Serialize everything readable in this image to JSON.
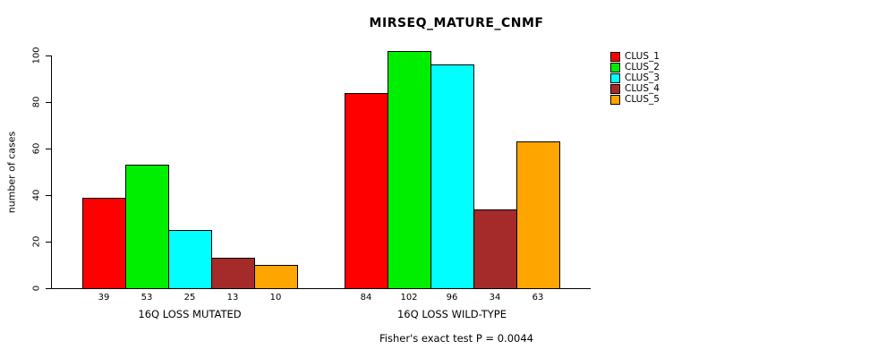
{
  "chart_data": {
    "type": "bar",
    "title": "MIRSEQ_MATURE_CNMF",
    "ylabel": "number of cases",
    "footer": "Fisher's exact test P = 0.0044",
    "categories": [
      "16Q LOSS MUTATED",
      "16Q LOSS WILD-TYPE"
    ],
    "series": [
      {
        "name": "CLUS_1",
        "color": "#ff0000",
        "values": [
          39,
          84
        ]
      },
      {
        "name": "CLUS_2",
        "color": "#00ee00",
        "values": [
          53,
          102
        ]
      },
      {
        "name": "CLUS_3",
        "color": "#00ffff",
        "values": [
          25,
          96
        ]
      },
      {
        "name": "CLUS_4",
        "color": "#a52a2a",
        "values": [
          13,
          34
        ]
      },
      {
        "name": "CLUS_5",
        "color": "#ffa500",
        "values": [
          10,
          63
        ]
      }
    ],
    "ylim": [
      0,
      100
    ],
    "yticks": [
      0,
      20,
      40,
      60,
      80,
      100
    ],
    "grid": false,
    "legend_position": "right"
  }
}
